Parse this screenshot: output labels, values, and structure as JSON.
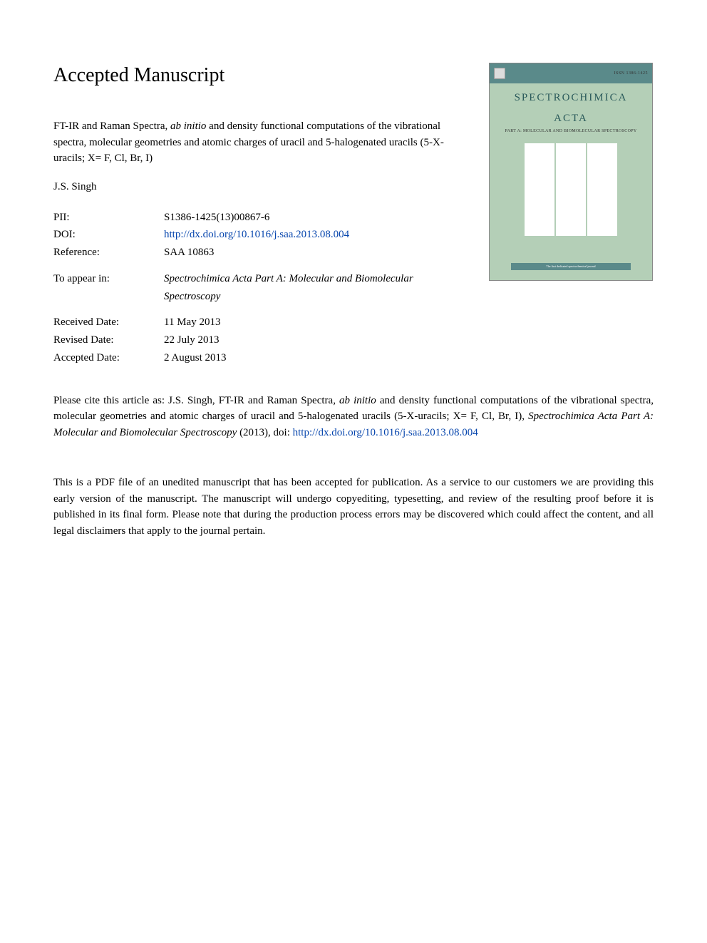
{
  "heading": "Accepted Manuscript",
  "article": {
    "title_pre": "FT-IR and Raman Spectra, ",
    "title_italic": "ab initio",
    "title_post": " and density functional computations of the vibrational spectra, molecular geometries and atomic charges of uracil and 5-halogenated uracils (5-X-uracils; X= F, Cl, Br, I)"
  },
  "authors": "J.S. Singh",
  "meta": {
    "pii_label": "PII:",
    "pii_value": "S1386-1425(13)00867-6",
    "doi_label": "DOI:",
    "doi_value": "http://dx.doi.org/10.1016/j.saa.2013.08.004",
    "ref_label": "Reference:",
    "ref_value": "SAA 10863",
    "appear_label": "To appear in:",
    "appear_value": "Spectrochimica Acta Part A: Molecular and Biomolecular Spectroscopy",
    "received_label": "Received Date:",
    "received_value": "11 May 2013",
    "revised_label": "Revised Date:",
    "revised_value": "22 July 2013",
    "accepted_label": "Accepted Date:",
    "accepted_value": "2 August 2013"
  },
  "cover": {
    "issn": "ISSN 1386-1425",
    "title_line1": "SPECTROCHIMICA",
    "title_line2": "ACTA",
    "subtitle": "PART A: MOLECULAR AND BIOMOLECULAR SPECTROSCOPY",
    "footer": "The first dedicated spectrochemical journal",
    "bg_color": "#b4cfb7",
    "header_color": "#5a8a8a",
    "title_color": "#2a5a5a"
  },
  "citation": {
    "pre": "Please cite this article as: J.S. Singh, FT-IR and Raman Spectra, ",
    "italic1": "ab initio",
    "mid": " and density functional computations of the vibrational spectra, molecular geometries and atomic charges of uracil and 5-halogenated uracils (5-X-uracils; X= F, Cl, Br, I), ",
    "italic2": "Spectrochimica Acta Part A: Molecular and Biomolecular Spectroscopy",
    "post": " (2013), doi: ",
    "link": "http://dx.doi.org/10.1016/j.saa.2013.08.004"
  },
  "disclaimer": "This is a PDF file of an unedited manuscript that has been accepted for publication. As a service to our customers we are providing this early version of the manuscript. The manuscript will undergo copyediting, typesetting, and review of the resulting proof before it is published in its final form. Please note that during the production process errors may be discovered which could affect the content, and all legal disclaimers that apply to the journal pertain.",
  "colors": {
    "link": "#0645ad",
    "text": "#000000",
    "bg": "#ffffff"
  },
  "typography": {
    "heading_fontsize": 28,
    "body_fontsize": 15,
    "font_family": "Georgia, Times New Roman, serif"
  }
}
